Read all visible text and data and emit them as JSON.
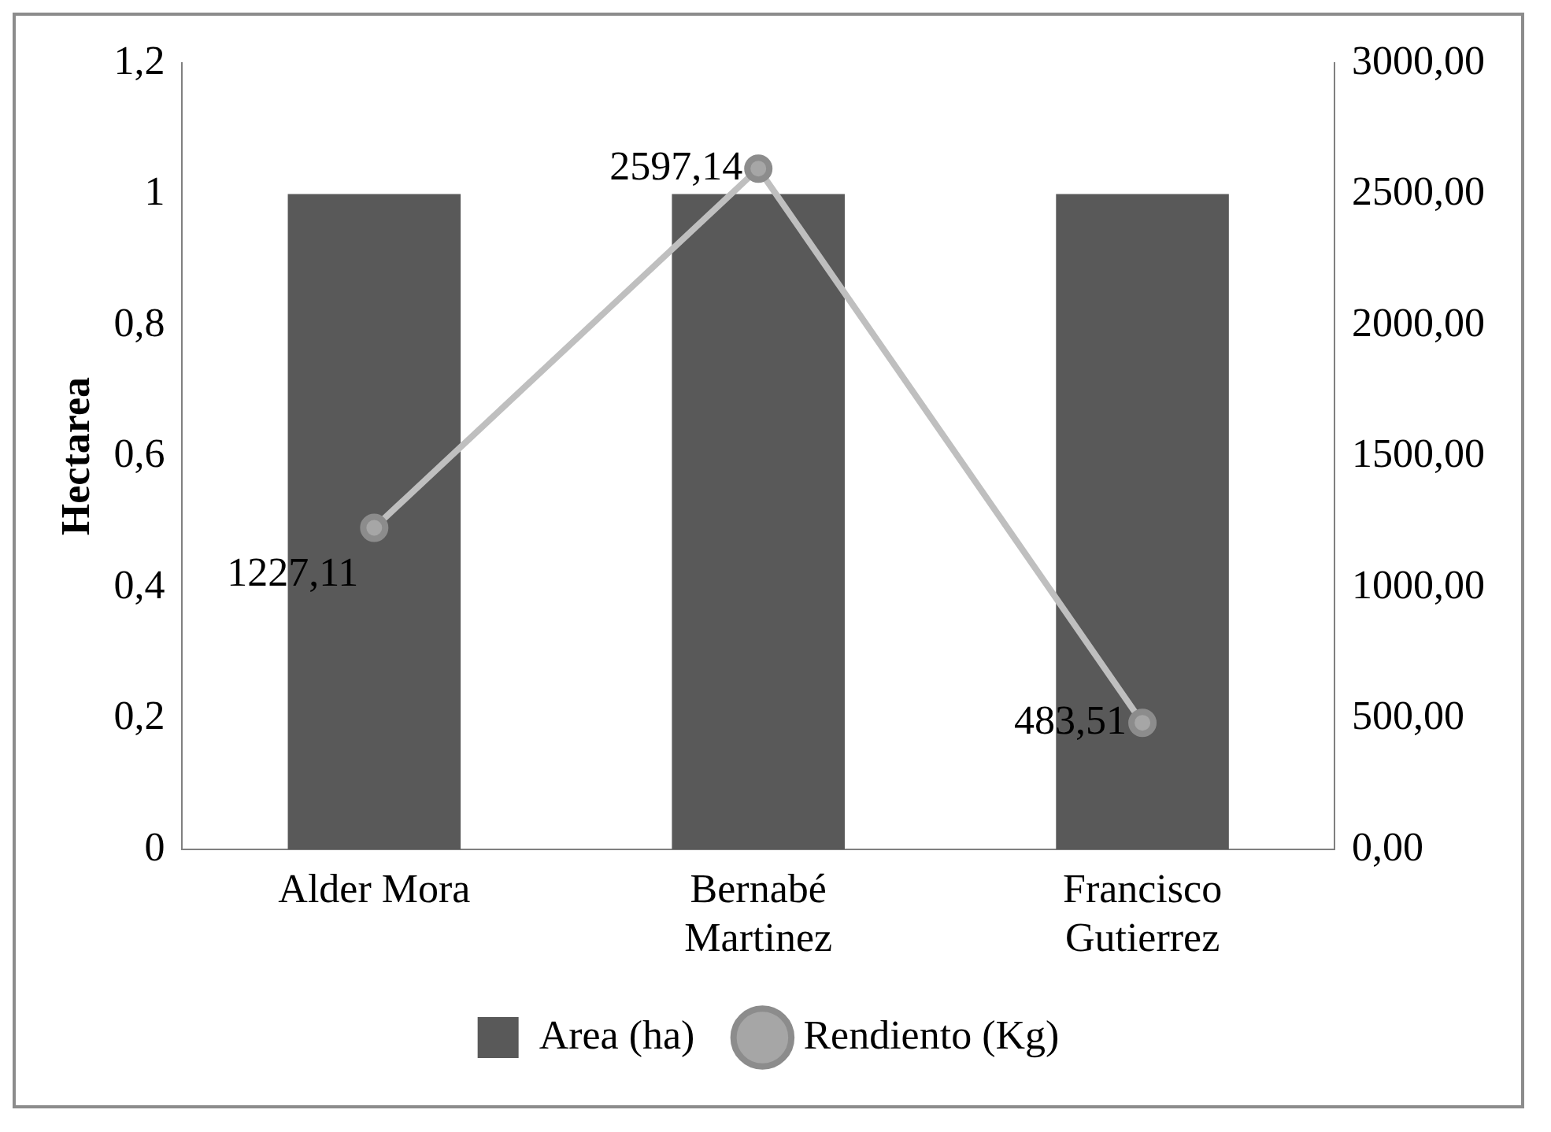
{
  "chart_data": {
    "type": "bar",
    "categories": [
      "Alder Mora",
      "Bernabé Martinez",
      "Francisco Gutierrez"
    ],
    "ylabel": "Hectarea",
    "ylim": [
      0,
      1.2
    ],
    "yticks": [
      0,
      {
        "value": 0.2,
        "label": "0,2"
      },
      {
        "value": 0.4,
        "label": "0,4"
      },
      {
        "value": 0.6,
        "label": "0,6"
      },
      {
        "value": 0.8,
        "label": "0,8"
      },
      1,
      {
        "value": 1.2,
        "label": "1,2"
      }
    ],
    "y2lim": [
      0,
      3000
    ],
    "y2ticks": [
      {
        "value": 0,
        "label": "0,00"
      },
      {
        "value": 500,
        "label": "500,00"
      },
      {
        "value": 1000,
        "label": "1000,00"
      },
      {
        "value": 1500,
        "label": "1500,00"
      },
      {
        "value": 2000,
        "label": "2000,00"
      },
      {
        "value": 2500,
        "label": "2500,00"
      },
      {
        "value": 3000,
        "label": "3000,00"
      }
    ],
    "series": [
      {
        "name": "Area (ha)",
        "color": "#595959",
        "values": [
          1,
          1,
          1
        ]
      },
      {
        "name": "Rendiento (Kg)",
        "type": "line",
        "axis": "y2",
        "color": "#bfbfbf",
        "marker": "circle",
        "values": [
          1227.11,
          2597.14,
          483.51
        ],
        "value_labels": [
          "1227,11",
          "2597,14",
          "483,51"
        ]
      }
    ],
    "grid": false,
    "legend": "bottom"
  }
}
